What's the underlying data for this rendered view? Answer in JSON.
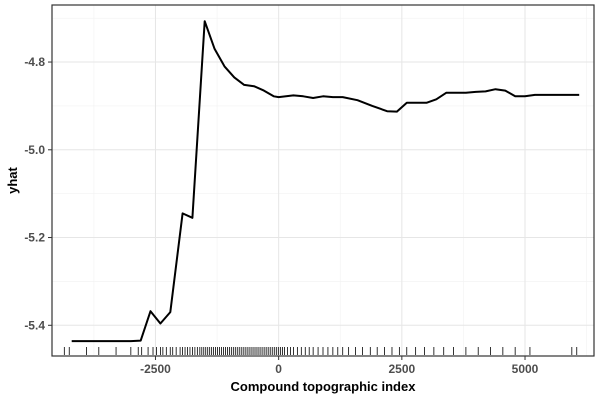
{
  "chart_data": {
    "type": "line",
    "title": "",
    "xlabel": "Compound topographic index",
    "ylabel": "yhat",
    "xlim": [
      -4600,
      6400
    ],
    "ylim": [
      -5.47,
      -4.67
    ],
    "xticks": [
      -2500,
      0,
      2500,
      5000
    ],
    "xtick_labels": [
      "-2500",
      "0",
      "2500",
      "5000"
    ],
    "yticks": [
      -5.4,
      -5.2,
      -5.0,
      -4.8
    ],
    "ytick_labels": [
      "-5.4",
      "-5.2",
      "-5.0",
      "-4.8"
    ],
    "grid": true,
    "legend": "none",
    "series": [
      {
        "x": [
          -4200,
          -3900,
          -3600,
          -3300,
          -3000,
          -2800,
          -2600,
          -2400,
          -2200,
          -1950,
          -1750,
          -1500,
          -1300,
          -1100,
          -900,
          -700,
          -500,
          -300,
          -100,
          0,
          300,
          500,
          700,
          900,
          1100,
          1300,
          1600,
          1900,
          2200,
          2400,
          2600,
          2800,
          3000,
          3200,
          3400,
          3600,
          3800,
          4000,
          4200,
          4400,
          4600,
          4800,
          5000,
          5200,
          5400,
          5800,
          6100
        ],
        "y": [
          -5.436,
          -5.436,
          -5.436,
          -5.436,
          -5.436,
          -5.435,
          -5.368,
          -5.396,
          -5.37,
          -5.145,
          -5.155,
          -4.707,
          -4.77,
          -4.81,
          -4.835,
          -4.852,
          -4.855,
          -4.865,
          -4.878,
          -4.88,
          -4.876,
          -4.878,
          -4.882,
          -4.878,
          -4.88,
          -4.88,
          -4.887,
          -4.9,
          -4.912,
          -4.913,
          -4.893,
          -4.893,
          -4.893,
          -4.885,
          -4.87,
          -4.87,
          -4.87,
          -4.868,
          -4.867,
          -4.862,
          -4.865,
          -4.878,
          -4.878,
          -4.875,
          -4.875,
          -4.875,
          -4.875
        ]
      }
    ],
    "rug_x": [
      -4350,
      -4250,
      -3900,
      -3650,
      -3300,
      -3000,
      -2850,
      -2780,
      -2650,
      -2550,
      -2480,
      -2400,
      -2350,
      -2280,
      -2200,
      -2150,
      -2080,
      -2000,
      -1950,
      -1900,
      -1850,
      -1800,
      -1750,
      -1700,
      -1650,
      -1600,
      -1560,
      -1520,
      -1480,
      -1440,
      -1400,
      -1360,
      -1320,
      -1280,
      -1240,
      -1200,
      -1160,
      -1120,
      -1080,
      -1040,
      -1000,
      -960,
      -920,
      -880,
      -840,
      -800,
      -760,
      -720,
      -680,
      -640,
      -600,
      -560,
      -520,
      -480,
      -440,
      -400,
      -360,
      -320,
      -280,
      -240,
      -200,
      -160,
      -120,
      -80,
      -40,
      0,
      40,
      80,
      120,
      180,
      240,
      300,
      380,
      460,
      540,
      620,
      700,
      800,
      900,
      1000,
      1100,
      1200,
      1300,
      1420,
      1560,
      1700,
      1860,
      2000,
      2150,
      2300,
      2450,
      2600,
      2780,
      2960,
      3150,
      3350,
      3550,
      3800,
      4050,
      4300,
      4550,
      4800,
      5100,
      5950,
      6050
    ]
  }
}
